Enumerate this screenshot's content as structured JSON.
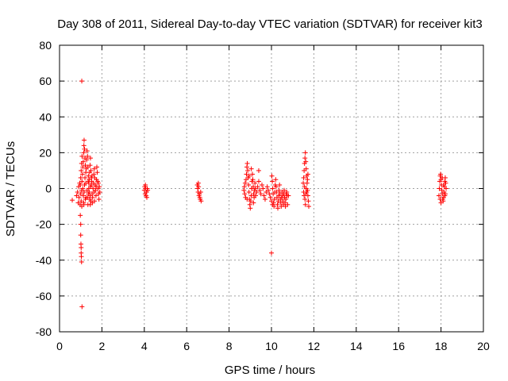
{
  "chart_data": {
    "type": "scatter",
    "title": "Day 308 of 2011, Sidereal Day-to-day VTEC variation (SDTVAR) for receiver kit3",
    "xlabel": "GPS time / hours",
    "ylabel": "SDTVAR / TECUs",
    "xlim": [
      0,
      20
    ],
    "ylim": [
      -80,
      80
    ],
    "xticks": [
      "0",
      "2",
      "4",
      "6",
      "8",
      "10",
      "12",
      "14",
      "16",
      "18",
      "20"
    ],
    "yticks": [
      "-80",
      "-60",
      "-40",
      "-20",
      "0",
      "20",
      "40",
      "60",
      "80"
    ],
    "grid": true,
    "marker": "+",
    "color": "#ff0000",
    "series": [
      {
        "name": "SDTVAR",
        "points": [
          [
            0.6,
            -6.5
          ],
          [
            0.8,
            -4
          ],
          [
            0.85,
            -2
          ],
          [
            0.88,
            -8
          ],
          [
            0.9,
            1
          ],
          [
            0.92,
            -5
          ],
          [
            0.95,
            3
          ],
          [
            0.97,
            -9
          ],
          [
            0.98,
            -15
          ],
          [
            1.0,
            -20
          ],
          [
            1.0,
            -26
          ],
          [
            1.01,
            -31
          ],
          [
            1.02,
            -33
          ],
          [
            1.02,
            -36
          ],
          [
            1.03,
            -38
          ],
          [
            1.04,
            -41
          ],
          [
            1.05,
            60
          ],
          [
            1.06,
            -66
          ],
          [
            1.0,
            6
          ],
          [
            1.02,
            10
          ],
          [
            1.04,
            14
          ],
          [
            1.06,
            18
          ],
          [
            0.98,
            2
          ],
          [
            1.0,
            -3
          ],
          [
            1.02,
            -7
          ],
          [
            1.04,
            -1
          ],
          [
            1.06,
            4
          ],
          [
            1.08,
            8
          ],
          [
            1.1,
            12
          ],
          [
            1.12,
            15
          ],
          [
            1.14,
            20
          ],
          [
            1.15,
            24
          ],
          [
            1.16,
            27
          ],
          [
            1.18,
            22
          ],
          [
            1.2,
            17
          ],
          [
            1.22,
            13
          ],
          [
            1.24,
            9
          ],
          [
            1.1,
            0
          ],
          [
            1.12,
            -4
          ],
          [
            1.14,
            -8
          ],
          [
            1.16,
            -2
          ],
          [
            1.18,
            2
          ],
          [
            1.2,
            6
          ],
          [
            1.22,
            -6
          ],
          [
            1.24,
            3
          ],
          [
            1.26,
            11
          ],
          [
            1.28,
            16
          ],
          [
            1.3,
            21
          ],
          [
            1.32,
            18
          ],
          [
            1.34,
            12
          ],
          [
            1.36,
            7
          ],
          [
            1.38,
            3
          ],
          [
            1.3,
            -1
          ],
          [
            1.32,
            -5
          ],
          [
            1.34,
            -9
          ],
          [
            1.36,
            -3
          ],
          [
            1.38,
            0
          ],
          [
            1.4,
            5
          ],
          [
            1.42,
            9
          ],
          [
            1.44,
            13
          ],
          [
            1.46,
            17
          ],
          [
            1.48,
            10
          ],
          [
            1.5,
            6
          ],
          [
            1.4,
            -2
          ],
          [
            1.42,
            -6
          ],
          [
            1.44,
            -4
          ],
          [
            1.46,
            1
          ],
          [
            1.48,
            -7
          ],
          [
            1.5,
            2
          ],
          [
            1.52,
            4
          ],
          [
            1.54,
            -3
          ],
          [
            1.56,
            -5
          ],
          [
            1.58,
            0
          ],
          [
            1.6,
            3
          ],
          [
            1.62,
            8
          ],
          [
            1.64,
            11
          ],
          [
            1.66,
            6
          ],
          [
            1.68,
            2
          ],
          [
            1.7,
            -1
          ],
          [
            1.72,
            -4
          ],
          [
            1.74,
            5
          ],
          [
            1.76,
            12
          ],
          [
            1.78,
            9
          ],
          [
            1.8,
            4
          ],
          [
            1.82,
            0
          ],
          [
            1.84,
            -3
          ],
          [
            1.86,
            -6
          ],
          [
            1.65,
            -7
          ],
          [
            1.55,
            -8
          ],
          [
            1.45,
            -9
          ],
          [
            1.25,
            -5
          ],
          [
            1.15,
            -9
          ],
          [
            1.05,
            -10
          ],
          [
            1.35,
            4
          ],
          [
            1.53,
            7
          ],
          [
            1.63,
            -2
          ],
          [
            1.73,
            1
          ],
          [
            1.83,
            3
          ],
          [
            1.88,
            1
          ],
          [
            1.9,
            -2
          ],
          [
            4.0,
            -1
          ],
          [
            4.02,
            1
          ],
          [
            4.04,
            -3
          ],
          [
            4.06,
            0
          ],
          [
            4.08,
            -4
          ],
          [
            4.1,
            -2
          ],
          [
            4.12,
            -5
          ],
          [
            4.14,
            0
          ],
          [
            4.16,
            -1
          ],
          [
            4.05,
            2
          ],
          [
            6.5,
            2
          ],
          [
            6.52,
            0
          ],
          [
            6.54,
            -2
          ],
          [
            6.56,
            1
          ],
          [
            6.58,
            -4
          ],
          [
            6.6,
            -3
          ],
          [
            6.62,
            -5
          ],
          [
            6.64,
            -6
          ],
          [
            6.66,
            -2
          ],
          [
            6.68,
            -7
          ],
          [
            6.55,
            3
          ],
          [
            8.7,
            -1
          ],
          [
            8.72,
            1
          ],
          [
            8.74,
            -3
          ],
          [
            8.76,
            3
          ],
          [
            8.78,
            -5
          ],
          [
            8.8,
            5
          ],
          [
            8.82,
            8
          ],
          [
            8.84,
            12
          ],
          [
            8.86,
            14
          ],
          [
            8.88,
            10
          ],
          [
            8.9,
            6
          ],
          [
            8.92,
            2
          ],
          [
            8.94,
            -2
          ],
          [
            8.96,
            -6
          ],
          [
            8.98,
            -9
          ],
          [
            9.0,
            -11
          ],
          [
            9.02,
            -7
          ],
          [
            9.04,
            -4
          ],
          [
            9.06,
            0
          ],
          [
            9.08,
            4
          ],
          [
            9.1,
            8
          ],
          [
            9.12,
            5
          ],
          [
            9.14,
            1
          ],
          [
            9.16,
            -3
          ],
          [
            9.18,
            -5
          ],
          [
            9.2,
            -1
          ],
          [
            9.22,
            3
          ],
          [
            9.24,
            0
          ],
          [
            8.85,
            -6
          ],
          [
            8.95,
            7
          ],
          [
            9.05,
            11
          ],
          [
            9.15,
            -8
          ],
          [
            9.25,
            -4
          ],
          [
            9.3,
            -2
          ],
          [
            9.35,
            1
          ],
          [
            9.4,
            4
          ],
          [
            9.45,
            -1
          ],
          [
            9.5,
            -3
          ],
          [
            9.55,
            2
          ],
          [
            9.6,
            0
          ],
          [
            9.4,
            10
          ],
          [
            9.65,
            -4
          ],
          [
            9.7,
            -6
          ],
          [
            9.75,
            -2
          ],
          [
            9.8,
            1
          ],
          [
            9.85,
            -1
          ],
          [
            9.9,
            -3
          ],
          [
            9.95,
            -5
          ],
          [
            10.0,
            -36
          ],
          [
            10.0,
            -7
          ],
          [
            10.02,
            7
          ],
          [
            10.04,
            4
          ],
          [
            10.06,
            0
          ],
          [
            10.08,
            -3
          ],
          [
            10.1,
            -8
          ],
          [
            10.12,
            -10
          ],
          [
            10.14,
            -6
          ],
          [
            10.16,
            -2
          ],
          [
            10.18,
            2
          ],
          [
            10.2,
            5
          ],
          [
            10.22,
            1
          ],
          [
            10.24,
            -2
          ],
          [
            10.26,
            -5
          ],
          [
            10.28,
            -9
          ],
          [
            10.3,
            -11
          ],
          [
            10.32,
            -7
          ],
          [
            10.34,
            -4
          ],
          [
            10.36,
            -1
          ],
          [
            10.38,
            2
          ],
          [
            10.4,
            -3
          ],
          [
            10.42,
            -6
          ],
          [
            10.44,
            -8
          ],
          [
            10.46,
            -10
          ],
          [
            10.48,
            -5
          ],
          [
            10.5,
            -2
          ],
          [
            10.52,
            -4
          ],
          [
            10.54,
            -7
          ],
          [
            10.56,
            -9
          ],
          [
            10.58,
            -3
          ],
          [
            10.6,
            -1
          ],
          [
            10.62,
            -5
          ],
          [
            10.64,
            -8
          ],
          [
            10.66,
            -10
          ],
          [
            10.68,
            -6
          ],
          [
            10.7,
            -3
          ],
          [
            10.72,
            -2
          ],
          [
            10.74,
            -4
          ],
          [
            10.76,
            -9
          ],
          [
            10.8,
            -4
          ],
          [
            10.05,
            -9
          ],
          [
            11.5,
            3
          ],
          [
            11.52,
            6
          ],
          [
            11.54,
            10
          ],
          [
            11.56,
            14
          ],
          [
            11.58,
            17
          ],
          [
            11.6,
            20
          ],
          [
            11.62,
            15
          ],
          [
            11.64,
            11
          ],
          [
            11.66,
            7
          ],
          [
            11.68,
            3
          ],
          [
            11.7,
            -1
          ],
          [
            11.72,
            -4
          ],
          [
            11.74,
            -7
          ],
          [
            11.76,
            -10
          ],
          [
            11.58,
            -6
          ],
          [
            11.6,
            -9
          ],
          [
            11.62,
            -3
          ],
          [
            11.64,
            0
          ],
          [
            11.66,
            -2
          ],
          [
            11.56,
            1
          ],
          [
            11.54,
            -4
          ],
          [
            11.7,
            5
          ],
          [
            11.72,
            8
          ],
          [
            11.52,
            -2
          ],
          [
            17.9,
            -4
          ],
          [
            17.92,
            0
          ],
          [
            17.94,
            4
          ],
          [
            17.96,
            7
          ],
          [
            17.98,
            8
          ],
          [
            18.0,
            5
          ],
          [
            18.02,
            2
          ],
          [
            18.04,
            -1
          ],
          [
            18.06,
            -3
          ],
          [
            18.08,
            -6
          ],
          [
            18.1,
            -7
          ],
          [
            18.12,
            -5
          ],
          [
            18.14,
            -2
          ],
          [
            18.16,
            1
          ],
          [
            18.18,
            4
          ],
          [
            18.2,
            6
          ],
          [
            18.22,
            3
          ],
          [
            18.24,
            0
          ],
          [
            18.0,
            -8
          ],
          [
            18.06,
            6
          ],
          [
            18.12,
            2
          ],
          [
            18.18,
            -4
          ],
          [
            17.96,
            -6
          ],
          [
            18.2,
            -3
          ]
        ]
      }
    ]
  }
}
